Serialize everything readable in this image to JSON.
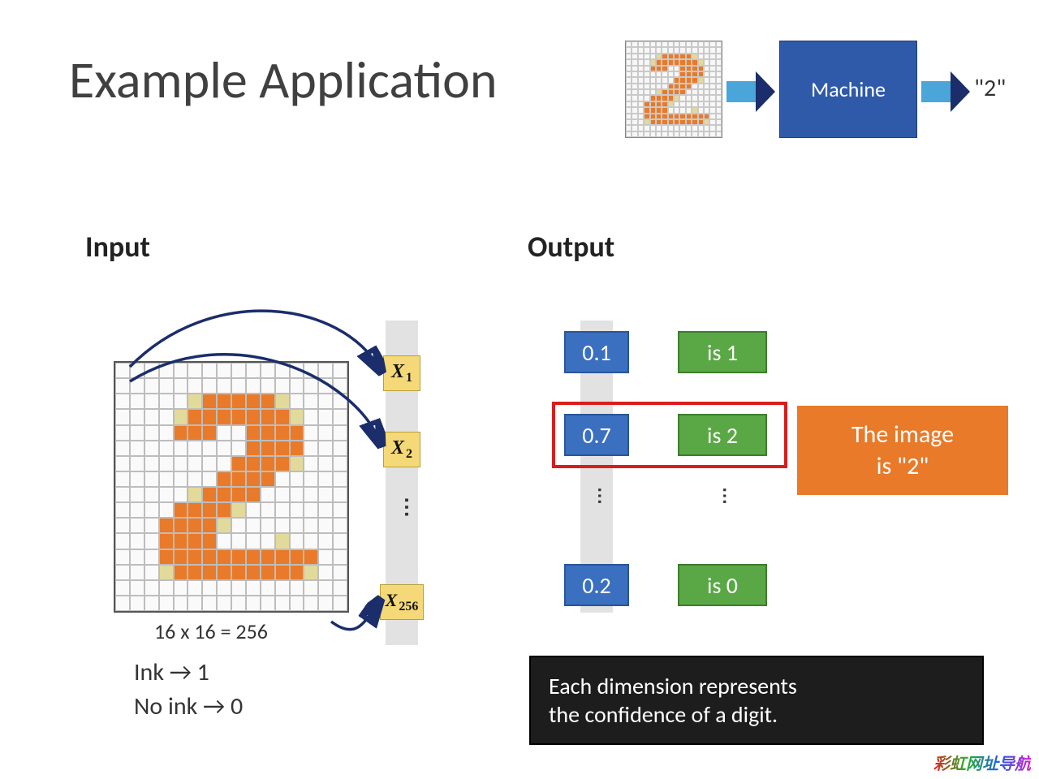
{
  "slide": {
    "title": "Example Application",
    "background": "#ffffff"
  },
  "header_pipeline": {
    "grid_size": 16,
    "digit_color": "#e87a2a",
    "edge_color": "#e2da9a",
    "grid_line_color": "#c9c9c9",
    "arrow_color": "#4aa5d8",
    "machine_label": "Machine",
    "machine_bg": "#2f5aa9",
    "machine_text_color": "#ffffff",
    "output_text": "\"2\""
  },
  "digit_bitmap": {
    "rows": 16,
    "cols": 16,
    "cells": [
      "................",
      "................",
      ".....eoooooe....",
      "....eoooooooe...",
      "....ooo..oooo...",
      ".........oooo...",
      "........ooooe...",
      ".......oooo.....",
      ".....eoooo......",
      "....ooooe.......",
      "...ooooe........",
      "...oooo....e....",
      "...ooooooooooo..",
      "...eoooooooooe..",
      "................",
      "................"
    ]
  },
  "sections": {
    "input_heading": "Input",
    "output_heading": "Output"
  },
  "input": {
    "vector_bg": "#e2e2e2",
    "cell_bg": "#f5d877",
    "cells": [
      "X₁",
      "X₂",
      "X₂₅₆"
    ],
    "grid_caption": "16 x 16 = 256",
    "legend1": "Ink → 1",
    "legend2": "No ink → 0",
    "arrow_color": "#1b2d6b"
  },
  "output": {
    "value_bg": "#3b6fbf",
    "label_bg": "#5aa746",
    "rows": [
      {
        "value": "0.1",
        "label": "is 1"
      },
      {
        "value": "0.7",
        "label": "is 2"
      },
      {
        "value": "0.2",
        "label": "is 0"
      }
    ],
    "highlight_row": 1,
    "highlight_color": "#d91d1d",
    "callout_text": "The image\nis  \"2\"",
    "callout_bg": "#e87a2a",
    "footer_text": "Each dimension represents\nthe confidence of a digit.",
    "footer_bg": "#1d1d1d"
  },
  "watermark": "彩虹网址导航"
}
